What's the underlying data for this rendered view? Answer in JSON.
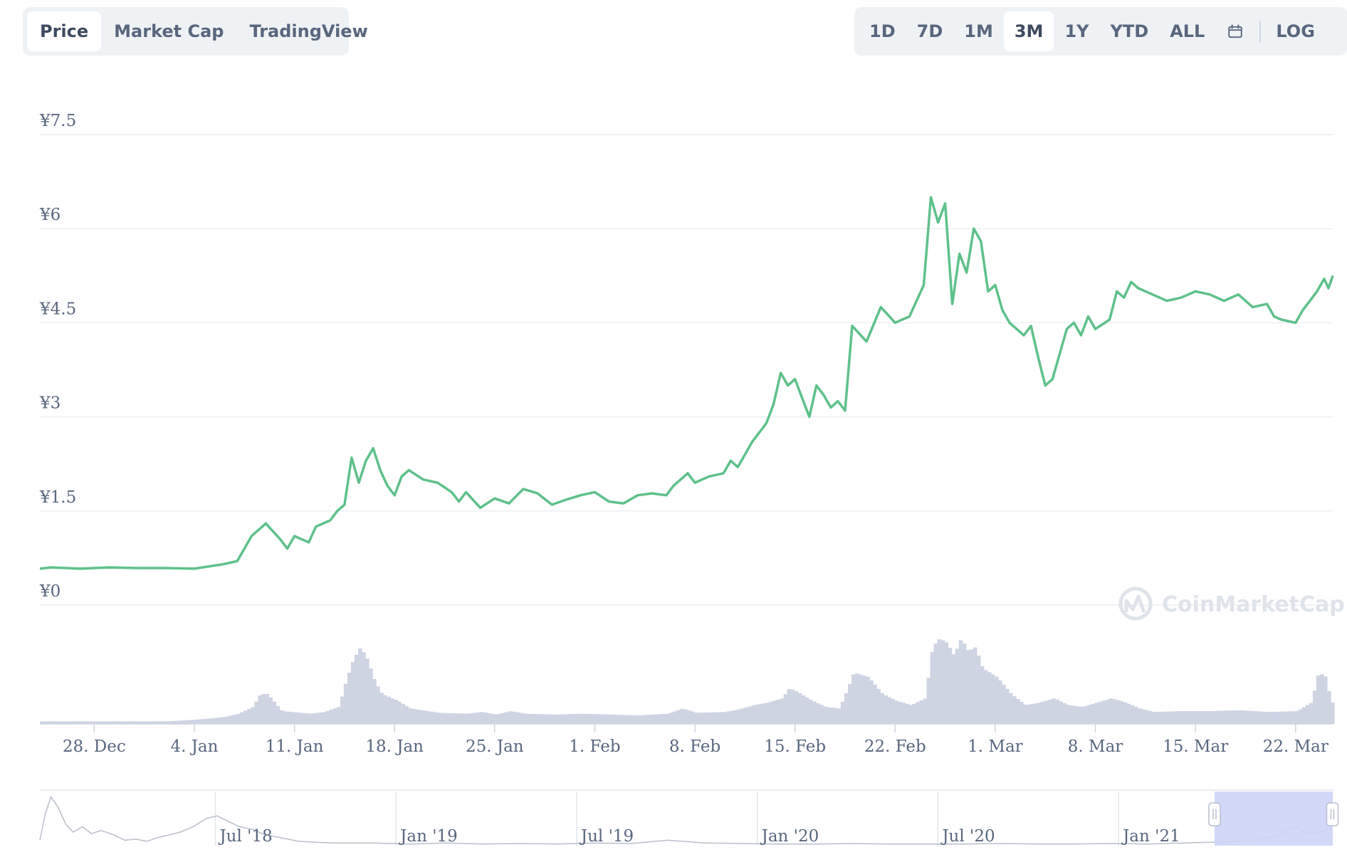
{
  "toolbar": {
    "chart_type_tabs": [
      {
        "label": "Price",
        "active": true
      },
      {
        "label": "Market Cap",
        "active": false
      },
      {
        "label": "TradingView",
        "active": false
      }
    ],
    "range_tabs": [
      {
        "label": "1D",
        "active": false
      },
      {
        "label": "7D",
        "active": false
      },
      {
        "label": "1M",
        "active": false
      },
      {
        "label": "3M",
        "active": true
      },
      {
        "label": "1Y",
        "active": false
      },
      {
        "label": "YTD",
        "active": false
      },
      {
        "label": "ALL",
        "active": false
      }
    ],
    "calendar_icon": "calendar-icon",
    "log_label": "LOG"
  },
  "watermark": "CoinMarketCap",
  "colors": {
    "line": "#5ec18a",
    "volume": "#cfd4e3",
    "navigator_sel": "#cdd4f7",
    "grid": "#eceff3",
    "text": "#58667e"
  },
  "chart_data": {
    "type": "line",
    "y_ticks": [
      "¥0",
      "¥1.5",
      "¥3",
      "¥4.5",
      "¥6",
      "¥7.5"
    ],
    "ylim": [
      0,
      7.5
    ],
    "x_ticks": [
      "28. Dec",
      "4. Jan",
      "11. Jan",
      "18. Jan",
      "25. Jan",
      "1. Feb",
      "8. Feb",
      "15. Feb",
      "22. Feb",
      "1. Mar",
      "8. Mar",
      "15. Mar",
      "22. Mar"
    ],
    "x_start_day": -3.8,
    "x_end_day": 86.6,
    "price": [
      [
        -3.8,
        0.58
      ],
      [
        -3,
        0.6
      ],
      [
        -1,
        0.58
      ],
      [
        1,
        0.6
      ],
      [
        3,
        0.59
      ],
      [
        5,
        0.59
      ],
      [
        7,
        0.58
      ],
      [
        9,
        0.65
      ],
      [
        10,
        0.7
      ],
      [
        10.5,
        0.9
      ],
      [
        11,
        1.1
      ],
      [
        12,
        1.3
      ],
      [
        13,
        1.05
      ],
      [
        13.5,
        0.9
      ],
      [
        14,
        1.1
      ],
      [
        15,
        1.0
      ],
      [
        15.5,
        1.25
      ],
      [
        16.5,
        1.35
      ],
      [
        17,
        1.5
      ],
      [
        17.5,
        1.6
      ],
      [
        18,
        2.35
      ],
      [
        18.5,
        1.95
      ],
      [
        19,
        2.3
      ],
      [
        19.5,
        2.5
      ],
      [
        20,
        2.15
      ],
      [
        20.5,
        1.9
      ],
      [
        21,
        1.75
      ],
      [
        21.5,
        2.05
      ],
      [
        22,
        2.15
      ],
      [
        23,
        2.0
      ],
      [
        24,
        1.95
      ],
      [
        25,
        1.8
      ],
      [
        25.5,
        1.65
      ],
      [
        26,
        1.8
      ],
      [
        27,
        1.55
      ],
      [
        28,
        1.7
      ],
      [
        29,
        1.62
      ],
      [
        30,
        1.85
      ],
      [
        31,
        1.78
      ],
      [
        32,
        1.6
      ],
      [
        33,
        1.68
      ],
      [
        34,
        1.75
      ],
      [
        35,
        1.8
      ],
      [
        36,
        1.65
      ],
      [
        37,
        1.62
      ],
      [
        38,
        1.75
      ],
      [
        39,
        1.78
      ],
      [
        40,
        1.75
      ],
      [
        40.5,
        1.9
      ],
      [
        41,
        2.0
      ],
      [
        41.5,
        2.1
      ],
      [
        42,
        1.95
      ],
      [
        43,
        2.05
      ],
      [
        44,
        2.1
      ],
      [
        44.5,
        2.3
      ],
      [
        45,
        2.2
      ],
      [
        45.5,
        2.4
      ],
      [
        46,
        2.6
      ],
      [
        47,
        2.9
      ],
      [
        47.5,
        3.2
      ],
      [
        48,
        3.7
      ],
      [
        48.5,
        3.5
      ],
      [
        49,
        3.6
      ],
      [
        49.5,
        3.3
      ],
      [
        50,
        3.0
      ],
      [
        50.5,
        3.5
      ],
      [
        51,
        3.35
      ],
      [
        51.5,
        3.15
      ],
      [
        52,
        3.25
      ],
      [
        52.5,
        3.1
      ],
      [
        53,
        4.45
      ],
      [
        54,
        4.2
      ],
      [
        55,
        4.75
      ],
      [
        56,
        4.5
      ],
      [
        57,
        4.6
      ],
      [
        58,
        5.1
      ],
      [
        58.5,
        6.5
      ],
      [
        59,
        6.1
      ],
      [
        59.5,
        6.4
      ],
      [
        60,
        4.8
      ],
      [
        60.5,
        5.6
      ],
      [
        61,
        5.3
      ],
      [
        61.5,
        6.0
      ],
      [
        62,
        5.8
      ],
      [
        62.5,
        5.0
      ],
      [
        63,
        5.1
      ],
      [
        63.5,
        4.7
      ],
      [
        64,
        4.5
      ],
      [
        64.5,
        4.4
      ],
      [
        65,
        4.3
      ],
      [
        65.5,
        4.45
      ],
      [
        66,
        3.95
      ],
      [
        66.5,
        3.5
      ],
      [
        67,
        3.6
      ],
      [
        68,
        4.4
      ],
      [
        68.5,
        4.5
      ],
      [
        69,
        4.3
      ],
      [
        69.5,
        4.6
      ],
      [
        70,
        4.4
      ],
      [
        71,
        4.55
      ],
      [
        71.5,
        5.0
      ],
      [
        72,
        4.9
      ],
      [
        72.5,
        5.15
      ],
      [
        73,
        5.05
      ],
      [
        74,
        4.95
      ],
      [
        75,
        4.85
      ],
      [
        76,
        4.9
      ],
      [
        77,
        5.0
      ],
      [
        78,
        4.95
      ],
      [
        79,
        4.85
      ],
      [
        80,
        4.95
      ],
      [
        81,
        4.75
      ],
      [
        82,
        4.8
      ],
      [
        82.5,
        4.6
      ],
      [
        83,
        4.55
      ],
      [
        84,
        4.5
      ],
      [
        84.5,
        4.7
      ],
      [
        85,
        4.85
      ],
      [
        85.5,
        5.0
      ],
      [
        86,
        5.2
      ],
      [
        86.3,
        5.05
      ],
      [
        86.6,
        5.25
      ]
    ],
    "volume": [
      [
        -3.8,
        0.03
      ],
      [
        5,
        0.03
      ],
      [
        7,
        0.05
      ],
      [
        9,
        0.08
      ],
      [
        10,
        0.12
      ],
      [
        11,
        0.2
      ],
      [
        11.5,
        0.35
      ],
      [
        12,
        0.35
      ],
      [
        12.5,
        0.25
      ],
      [
        13,
        0.15
      ],
      [
        15,
        0.12
      ],
      [
        16,
        0.14
      ],
      [
        17,
        0.2
      ],
      [
        17.5,
        0.5
      ],
      [
        18,
        0.75
      ],
      [
        18.5,
        0.9
      ],
      [
        19,
        0.75
      ],
      [
        19.5,
        0.5
      ],
      [
        20,
        0.35
      ],
      [
        21,
        0.28
      ],
      [
        22,
        0.18
      ],
      [
        24,
        0.13
      ],
      [
        26,
        0.12
      ],
      [
        27,
        0.14
      ],
      [
        28,
        0.11
      ],
      [
        29,
        0.15
      ],
      [
        30,
        0.12
      ],
      [
        32,
        0.11
      ],
      [
        34,
        0.12
      ],
      [
        36,
        0.11
      ],
      [
        38,
        0.1
      ],
      [
        40,
        0.12
      ],
      [
        41,
        0.18
      ],
      [
        42,
        0.13
      ],
      [
        44,
        0.14
      ],
      [
        45,
        0.17
      ],
      [
        46,
        0.22
      ],
      [
        47,
        0.25
      ],
      [
        48,
        0.3
      ],
      [
        48.5,
        0.42
      ],
      [
        49,
        0.38
      ],
      [
        50,
        0.28
      ],
      [
        51,
        0.2
      ],
      [
        52,
        0.18
      ],
      [
        52.5,
        0.38
      ],
      [
        53,
        0.6
      ],
      [
        54,
        0.55
      ],
      [
        55,
        0.35
      ],
      [
        56,
        0.27
      ],
      [
        57,
        0.22
      ],
      [
        58,
        0.3
      ],
      [
        58.5,
        0.9
      ],
      [
        59,
        1.0
      ],
      [
        59.5,
        0.95
      ],
      [
        60,
        0.8
      ],
      [
        60.5,
        1.0
      ],
      [
        61,
        0.85
      ],
      [
        61.5,
        0.9
      ],
      [
        62,
        0.65
      ],
      [
        63,
        0.55
      ],
      [
        64,
        0.35
      ],
      [
        65,
        0.22
      ],
      [
        66,
        0.25
      ],
      [
        67,
        0.3
      ],
      [
        68,
        0.22
      ],
      [
        69,
        0.2
      ],
      [
        70,
        0.25
      ],
      [
        71,
        0.3
      ],
      [
        72,
        0.25
      ],
      [
        73,
        0.18
      ],
      [
        74,
        0.14
      ],
      [
        76,
        0.15
      ],
      [
        78,
        0.15
      ],
      [
        80,
        0.16
      ],
      [
        82,
        0.14
      ],
      [
        84,
        0.15
      ],
      [
        85,
        0.25
      ],
      [
        85.5,
        0.6
      ],
      [
        86,
        0.55
      ],
      [
        86.3,
        0.3
      ],
      [
        86.6,
        0.2
      ]
    ]
  },
  "navigator": {
    "labels": [
      "Jul '18",
      "Jan '19",
      "Jul '19",
      "Jan '20",
      "Jul '20",
      "Jan '21"
    ],
    "series": [
      [
        0,
        0.1
      ],
      [
        0.3,
        0.6
      ],
      [
        0.6,
        0.9
      ],
      [
        1,
        0.7
      ],
      [
        1.4,
        0.4
      ],
      [
        1.8,
        0.25
      ],
      [
        2.3,
        0.35
      ],
      [
        2.8,
        0.22
      ],
      [
        3.3,
        0.28
      ],
      [
        4,
        0.2
      ],
      [
        4.6,
        0.1
      ],
      [
        5.2,
        0.12
      ],
      [
        5.8,
        0.08
      ],
      [
        6.4,
        0.15
      ],
      [
        7,
        0.2
      ],
      [
        7.6,
        0.25
      ],
      [
        8.3,
        0.35
      ],
      [
        9,
        0.5
      ],
      [
        9.6,
        0.55
      ],
      [
        10.2,
        0.45
      ],
      [
        10.8,
        0.35
      ],
      [
        11.5,
        0.3
      ],
      [
        12.2,
        0.2
      ],
      [
        13,
        0.15
      ],
      [
        14,
        0.08
      ],
      [
        15,
        0.06
      ],
      [
        16,
        0.05
      ],
      [
        18,
        0.05
      ],
      [
        20,
        0.03
      ],
      [
        22,
        0.05
      ],
      [
        24,
        0.03
      ],
      [
        26,
        0.04
      ],
      [
        28,
        0.03
      ],
      [
        30,
        0.05
      ],
      [
        32,
        0.04
      ],
      [
        34,
        0.1
      ],
      [
        36,
        0.05
      ],
      [
        38,
        0.04
      ],
      [
        40,
        0.03
      ],
      [
        42,
        0.03
      ],
      [
        44,
        0.04
      ],
      [
        46,
        0.03
      ],
      [
        48,
        0.03
      ],
      [
        50,
        0.03
      ],
      [
        52,
        0.04
      ],
      [
        54,
        0.03
      ],
      [
        56,
        0.03
      ],
      [
        58,
        0.04
      ],
      [
        60,
        0.03
      ],
      [
        62,
        0.05
      ],
      [
        64,
        0.07
      ],
      [
        66,
        0.1
      ],
      [
        67,
        0.2
      ],
      [
        68,
        0.35
      ],
      [
        68.5,
        0.25
      ],
      [
        69,
        0.22
      ],
      [
        69.7,
        0.3
      ],
      [
        70,
        0.28
      ]
    ],
    "selection": [
      63.6,
      70
    ]
  }
}
